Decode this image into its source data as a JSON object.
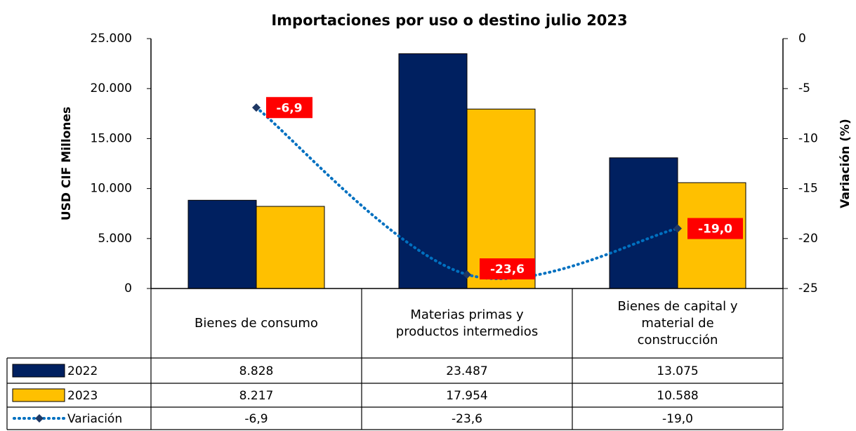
{
  "chart_data": {
    "type": "bar",
    "title": "Importaciones por uso o destino julio 2023",
    "ylabel": "USD CIF Millones",
    "y2label": "Variación (%)",
    "categories": [
      "Bienes de consumo",
      "Materias primas y productos intermedios",
      "Bienes de capital y material de construcción"
    ],
    "series": [
      {
        "name": "2022",
        "color": "#002060",
        "values": [
          8828,
          23487,
          13075
        ],
        "value_labels": [
          "8.828",
          "23.487",
          "13.075"
        ]
      },
      {
        "name": "2023",
        "color": "#ffc000",
        "values": [
          8217,
          17954,
          10588
        ],
        "value_labels": [
          "8.217",
          "17.954",
          "10.588"
        ]
      },
      {
        "name": "Variación",
        "type": "line",
        "axis": "y2",
        "color": "#0070c0",
        "marker_color": "#1f3864",
        "label_color": "#ff0000",
        "values": [
          -6.9,
          -23.6,
          -19.0
        ],
        "value_labels": [
          "-6,9",
          "-23,6",
          "-19,0"
        ]
      }
    ],
    "ylim": [
      0,
      25000
    ],
    "yticks": [
      0,
      {
        "value": 5000,
        "label": "5.000"
      },
      {
        "value": 10000,
        "label": "10.000"
      },
      {
        "value": 15000,
        "label": "15.000"
      },
      {
        "value": 20000,
        "label": "20.000"
      },
      {
        "value": 25000,
        "label": "25.000"
      }
    ],
    "y2lim": [
      -25,
      0
    ],
    "y2ticks": [
      -25,
      -20,
      -15,
      -10,
      -5,
      0
    ],
    "data_table": true
  }
}
